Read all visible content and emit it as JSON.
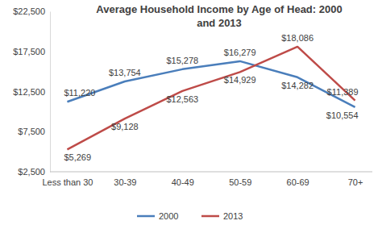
{
  "chart_data": {
    "type": "line",
    "title": "Average Household Income by Age of Head: 2000 and 2013",
    "categories": [
      "Less than 30",
      "30-39",
      "40-49",
      "50-59",
      "60-69",
      "70+"
    ],
    "series": [
      {
        "name": "2000",
        "color": "#4a7ebb",
        "values": [
          11220,
          13754,
          15278,
          16279,
          14282,
          10554
        ],
        "value_labels": [
          "$11,220",
          "$13,754",
          "$15,278",
          "$16,279",
          "$14,282",
          "$10,554"
        ]
      },
      {
        "name": "2013",
        "color": "#be4b48",
        "values": [
          5269,
          9128,
          12563,
          14929,
          18086,
          11389
        ],
        "value_labels": [
          "$5,269",
          "$9,128",
          "$12,563",
          "$14,929",
          "$18,086",
          "$11,389"
        ]
      }
    ],
    "ylim": [
      2500,
      22500
    ],
    "yticks": [
      {
        "value": 2500,
        "label": "$2,500"
      },
      {
        "value": 7500,
        "label": "$7,500"
      },
      {
        "value": 12500,
        "label": "$12,500"
      },
      {
        "value": 17500,
        "label": "$17,500"
      },
      {
        "value": 22500,
        "label": "$22,500"
      }
    ],
    "grid": false,
    "data_labels": true,
    "legend": "bottom"
  }
}
